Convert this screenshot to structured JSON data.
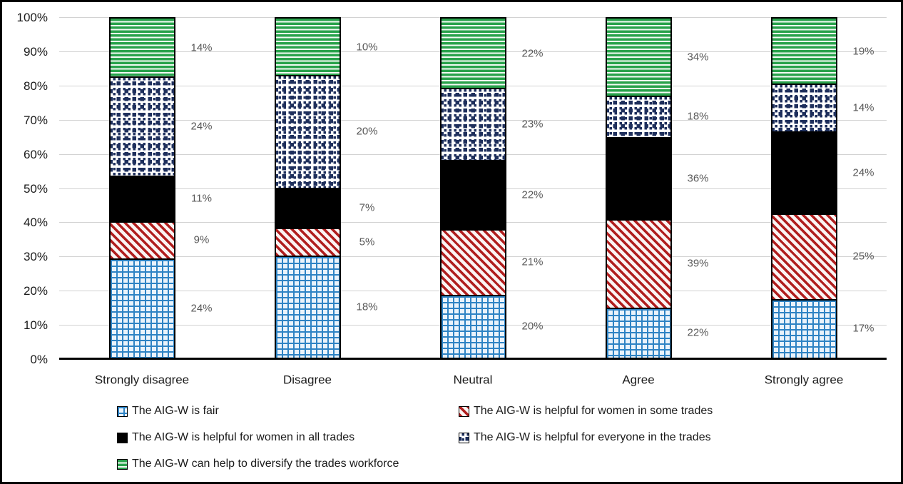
{
  "chart_data": {
    "type": "bar",
    "stacked": true,
    "percent_stacked": true,
    "title": "",
    "categories": [
      "Strongly disagree",
      "Disagree",
      "Neutral",
      "Agree",
      "Strongly agree"
    ],
    "series": [
      {
        "name": "The AIG-W is fair",
        "pattern": "fair",
        "values": [
          24,
          18,
          20,
          22,
          17
        ],
        "data_labels": [
          "24%",
          "18%",
          "20%",
          "22%",
          "17%"
        ]
      },
      {
        "name": "The AIG-W is helpful for women in some trades",
        "pattern": "some",
        "values": [
          9,
          5,
          21,
          39,
          25
        ],
        "data_labels": [
          "9%",
          "5%",
          "21%",
          "39%",
          "25%"
        ]
      },
      {
        "name": "The AIG-W is helpful for women in all trades",
        "pattern": "all",
        "values": [
          11,
          7,
          22,
          36,
          24
        ],
        "data_labels": [
          "11%",
          "7%",
          "22%",
          "36%",
          "24%"
        ]
      },
      {
        "name": "The AIG-W is helpful for everyone in the trades",
        "pattern": "everyone",
        "values": [
          24,
          20,
          23,
          18,
          14
        ],
        "data_labels": [
          "24%",
          "20%",
          "23%",
          "18%",
          "14%"
        ]
      },
      {
        "name": "The AIG-W can help to diversify the trades workforce",
        "pattern": "diversify",
        "values": [
          14,
          10,
          22,
          34,
          19
        ],
        "data_labels": [
          "14%",
          "10%",
          "22%",
          "34%",
          "19%"
        ]
      }
    ],
    "y_axis": {
      "ticks": [
        "0%",
        "10%",
        "20%",
        "30%",
        "40%",
        "50%",
        "60%",
        "70%",
        "80%",
        "90%",
        "100%"
      ],
      "min": 0,
      "max": 100,
      "grid": true
    },
    "legend_position": "bottom"
  },
  "legend": {
    "items": [
      "The AIG-W is fair",
      "The AIG-W is helpful for women in some trades",
      "The AIG-W is helpful for women in all trades",
      "The AIG-W is helpful for everyone in the trades",
      "The AIG-W can help to diversify the trades workforce"
    ]
  },
  "colors": {
    "fair_line": "#2E83C4",
    "fair_background": "#EAF3FB",
    "some_stripe": "#B01E1E",
    "all_fill": "#000000",
    "everyone_dot": "#1E2F5C",
    "diversify_stripe": "#28A24B",
    "gridline": "#D2D2D2",
    "axis_line": "#000000",
    "axis_text": "#1A1A1A",
    "data_label_text": "#595959"
  }
}
